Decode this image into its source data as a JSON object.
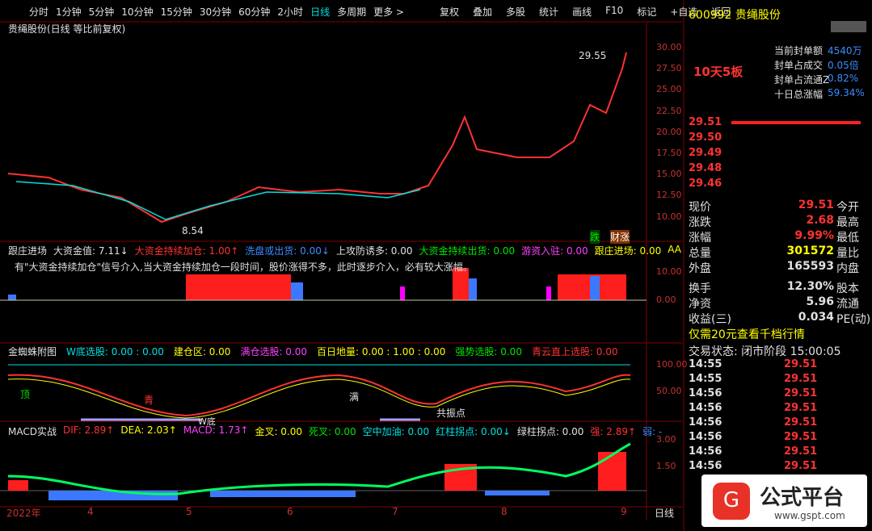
{
  "toolbar": {
    "left": [
      "分时",
      "1分钟",
      "5分钟",
      "10分钟",
      "15分钟",
      "30分钟",
      "60分钟",
      "2小时",
      "日线",
      "多周期",
      "更多 >"
    ],
    "active_index": 8,
    "right": [
      "复权",
      "叠加",
      "多股",
      "统计",
      "画线",
      "F10",
      "标记",
      "+自选",
      "返回"
    ]
  },
  "main": {
    "title": "贵绳股份(日线 等比前复权)",
    "yticks": [
      "30.00",
      "27.50",
      "25.00",
      "22.50",
      "20.00",
      "17.50",
      "15.00",
      "12.50",
      "10.00"
    ],
    "high_label": "29.55",
    "low_label": "8.54",
    "tags": [
      "跌",
      "财涨"
    ]
  },
  "panel_fund": {
    "items": [
      {
        "text": "跟庄进场",
        "color": "#e0e0e0"
      },
      {
        "text": "大资金值: 7.11↓",
        "color": "#e0e0e0"
      },
      {
        "text": "大资金持续加仓: 1.00↑",
        "color": "#ff3232"
      },
      {
        "text": "洗盘或出货: 0.00↓",
        "color": "#3c8cff"
      },
      {
        "text": "上攻防诱多: 0.00",
        "color": "#e0e0e0"
      },
      {
        "text": "大资金持续出货: 0.00",
        "color": "#00e600"
      },
      {
        "text": "游资入驻: 0.00",
        "color": "#ff40ff"
      },
      {
        "text": "跟庄进场: 0.00",
        "color": "#ffff00"
      },
      {
        "text": "AA",
        "color": "#ffff00"
      }
    ],
    "note": "有\"大资金持续加仓\"信号介入,当大资金持续加仓一段时间，股价涨得不多，此时逐步介入，必有较大涨幅。",
    "yticks": [
      "10.00",
      "0.00"
    ]
  },
  "panel_spider": {
    "items": [
      {
        "text": "金蜘蛛附图",
        "color": "#e0e0e0"
      },
      {
        "text": "W底选股: 0.00 : 0.00",
        "color": "#00e0e0"
      },
      {
        "text": "建仓区: 0.00",
        "color": "#ffff00"
      },
      {
        "text": "满仓选股: 0.00",
        "color": "#ff40ff"
      },
      {
        "text": "百日地量: 0.00 : 1.00 : 0.00",
        "color": "#ffff00"
      },
      {
        "text": "强势选股: 0.00",
        "color": "#00e600"
      },
      {
        "text": "青云直上选股: 0.00",
        "color": "#ff3232"
      }
    ],
    "yticks": [
      "100.00",
      "50.00"
    ],
    "marks": [
      "顶",
      "青",
      "满",
      "W底",
      "共振点"
    ]
  },
  "panel_macd": {
    "items": [
      {
        "text": "MACD实战",
        "color": "#e0e0e0"
      },
      {
        "text": "DIF: 2.89↑",
        "color": "#ff3232"
      },
      {
        "text": "DEA: 2.03↑",
        "color": "#ffff00"
      },
      {
        "text": "MACD: 1.73↑",
        "color": "#ff40ff"
      },
      {
        "text": "金叉: 0.00",
        "color": "#ffff00"
      },
      {
        "text": "死叉: 0.00",
        "color": "#00e600"
      },
      {
        "text": "空中加油: 0.00",
        "color": "#00e0e0"
      },
      {
        "text": "红柱拐点: 0.00↓",
        "color": "#00e0e0"
      },
      {
        "text": "绿柱拐点: 0.00",
        "color": "#e0e0e0"
      },
      {
        "text": "强: 2.89↑",
        "color": "#ff3232"
      },
      {
        "text": "弱: -",
        "color": "#3c8cff"
      }
    ],
    "yticks": [
      "3.00",
      "1.50"
    ]
  },
  "dates": [
    "2022年",
    "4",
    "5",
    "6",
    "7",
    "8",
    "9"
  ],
  "period": "日线",
  "quote": {
    "code": "600992",
    "name": "贵绳股份",
    "board": "10天5板",
    "seal": [
      {
        "label": "当前封单额",
        "value": "4540万"
      },
      {
        "label": "封单占成交",
        "value": "0.05倍"
      },
      {
        "label": "封单占流通Z",
        "value": "0.82%"
      },
      {
        "label": "十日总涨幅",
        "value": "59.34%"
      }
    ],
    "book": [
      "29.51",
      "29.50",
      "29.49",
      "29.48",
      "29.46"
    ],
    "rows": [
      {
        "label": "现价",
        "value": "29.51",
        "label2": "今开"
      },
      {
        "label": "涨跌",
        "value": "2.68",
        "label2": "最高"
      },
      {
        "label": "涨幅",
        "value": "9.99%",
        "label2": "最低"
      },
      {
        "label": "总量",
        "value": "301572",
        "label2": "量比"
      },
      {
        "label": "外盘",
        "value": "165593",
        "label2": "内盘"
      },
      {
        "label": "换手",
        "value": "12.30%",
        "label2": "股本"
      },
      {
        "label": "净资",
        "value": "5.96",
        "label2": "流通"
      },
      {
        "label": "收益(三)",
        "value": "0.034",
        "label2": "PE(动)"
      }
    ],
    "promo": "仅需20元查看千档行情",
    "status": "交易状态: 闭市阶段 15:00:05",
    "ticks": [
      {
        "time": "14:55",
        "price": "29.51"
      },
      {
        "time": "14:55",
        "price": "29.51"
      },
      {
        "time": "14:56",
        "price": "29.51"
      },
      {
        "time": "14:56",
        "price": "29.51"
      },
      {
        "time": "14:56",
        "price": "29.51"
      },
      {
        "time": "14:56",
        "price": "29.51"
      },
      {
        "time": "14:56",
        "price": "29.51"
      },
      {
        "time": "14:56",
        "price": "29.51"
      }
    ]
  },
  "logo": {
    "name": "公式平台",
    "url": "www.gspt.com"
  }
}
